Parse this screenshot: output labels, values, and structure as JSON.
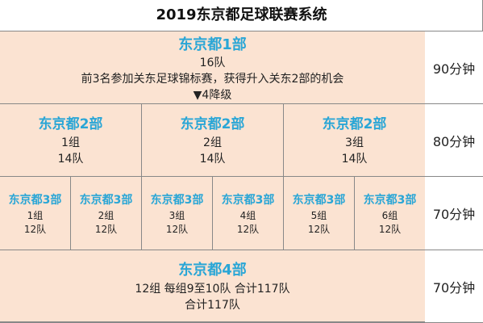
{
  "title": "2019东京都足球联赛系统",
  "div1": {
    "name": "东京都1部",
    "teams": "16队",
    "note": "前3名参加关东足球锦标赛，获得升入关东2部的机会",
    "relegation": "▼4降级",
    "duration": "90分钟"
  },
  "div2": {
    "duration": "80分钟",
    "groups": [
      {
        "name": "东京都2部",
        "group": "1组",
        "teams": "14队"
      },
      {
        "name": "东京都2部",
        "group": "2组",
        "teams": "14队"
      },
      {
        "name": "东京都2部",
        "group": "3组",
        "teams": "14队"
      }
    ]
  },
  "div3": {
    "duration": "70分钟",
    "groups": [
      {
        "name": "东京都3部",
        "group": "1组",
        "teams": "12队"
      },
      {
        "name": "东京都3部",
        "group": "2组",
        "teams": "12队"
      },
      {
        "name": "东京都3部",
        "group": "3组",
        "teams": "12队"
      },
      {
        "name": "东京都3部",
        "group": "4组",
        "teams": "12队"
      },
      {
        "name": "东京都3部",
        "group": "5组",
        "teams": "12队"
      },
      {
        "name": "东京都3部",
        "group": "6组",
        "teams": "12队"
      }
    ]
  },
  "div4": {
    "name": "东京都4部",
    "detail": "12组 每组9至10队 合计117队",
    "total": "合计117队",
    "duration": "70分钟"
  }
}
